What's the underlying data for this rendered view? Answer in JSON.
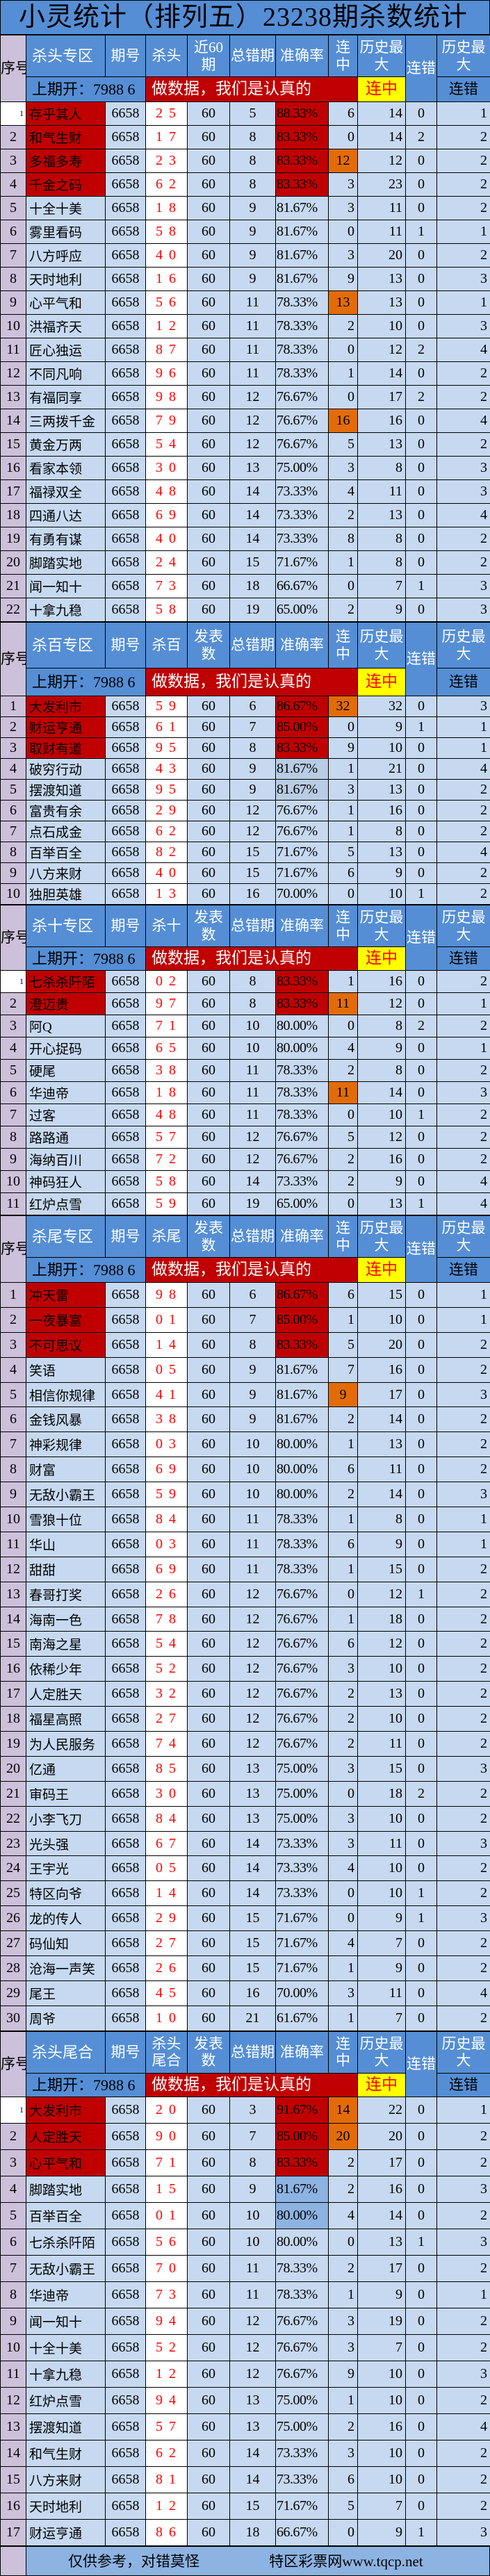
{
  "title": "小灵统计（排列五）23238期杀数统计",
  "header_common": {
    "seq": "序号",
    "period": "期号",
    "errors": "总错期",
    "accuracy": "准确率",
    "streak": "连中",
    "hist_max": "历史最大",
    "err_streak": "连错",
    "hist_max_err": "历史最大",
    "last_draw": "上期开：7988 6",
    "banner": "做数据，我们是认真的",
    "streak_badge": "连中",
    "err_streak_label": "连错"
  },
  "colors": {
    "header": "#558ed5",
    "row": "#c6d9f0",
    "seq": "#ccc0da",
    "top": "#c00000",
    "streak_hot": "#e36c09",
    "badge": "#ffff00",
    "footer": "#8db3e2"
  },
  "sections": [
    {
      "zone": "杀头专区",
      "kill_label": "杀头",
      "count_label": "近60期",
      "period": "6658",
      "top_highlight": 4,
      "orange_rows": [
        3,
        9,
        14
      ],
      "first_seq_plain": true,
      "acc_blue_rows": [],
      "acc_grey_rows": [],
      "rows": [
        [
          "1",
          "存乎其人",
          "2 5",
          "60",
          "5",
          "88.33%",
          "6",
          "14",
          "0",
          "1"
        ],
        [
          "2",
          "和气生财",
          "1 7",
          "60",
          "8",
          "83.33%",
          "0",
          "14",
          "2",
          "2"
        ],
        [
          "3",
          "多福多寿",
          "2 3",
          "60",
          "8",
          "83.33%",
          "12",
          "12",
          "0",
          "2"
        ],
        [
          "4",
          "千金之码",
          "6 2",
          "60",
          "8",
          "83.33%",
          "3",
          "23",
          "0",
          "2"
        ],
        [
          "5",
          "十全十美",
          "1 8",
          "60",
          "9",
          "81.67%",
          "3",
          "11",
          "0",
          "2"
        ],
        [
          "6",
          "雾里看码",
          "5 8",
          "60",
          "9",
          "81.67%",
          "0",
          "11",
          "1",
          "1"
        ],
        [
          "7",
          "八方呼应",
          "4 0",
          "60",
          "9",
          "81.67%",
          "3",
          "20",
          "0",
          "2"
        ],
        [
          "8",
          "天时地利",
          "1 6",
          "60",
          "9",
          "81.67%",
          "9",
          "13",
          "0",
          "3"
        ],
        [
          "9",
          "心平气和",
          "5 6",
          "60",
          "11",
          "78.33%",
          "13",
          "13",
          "0",
          "1"
        ],
        [
          "10",
          "洪福齐天",
          "1 2",
          "60",
          "11",
          "78.33%",
          "2",
          "10",
          "0",
          "3"
        ],
        [
          "11",
          "匠心独运",
          "8 7",
          "60",
          "11",
          "78.33%",
          "0",
          "12",
          "2",
          "4"
        ],
        [
          "12",
          "不同凡响",
          "9 6",
          "60",
          "11",
          "78.33%",
          "1",
          "14",
          "0",
          "2"
        ],
        [
          "13",
          "有福同享",
          "9 8",
          "60",
          "12",
          "76.67%",
          "0",
          "17",
          "2",
          "2"
        ],
        [
          "14",
          "三两拨千金",
          "7 9",
          "60",
          "12",
          "76.67%",
          "16",
          "16",
          "0",
          "4"
        ],
        [
          "15",
          "黄金万两",
          "5 4",
          "60",
          "12",
          "76.67%",
          "5",
          "13",
          "0",
          "2"
        ],
        [
          "16",
          "看家本领",
          "3 0",
          "60",
          "13",
          "75.00%",
          "3",
          "8",
          "0",
          "3"
        ],
        [
          "17",
          "福禄双全",
          "4 8",
          "60",
          "14",
          "73.33%",
          "4",
          "11",
          "0",
          "3"
        ],
        [
          "18",
          "四通八达",
          "6 9",
          "60",
          "14",
          "73.33%",
          "2",
          "13",
          "0",
          "4"
        ],
        [
          "19",
          "有勇有谋",
          "4 0",
          "60",
          "14",
          "73.33%",
          "8",
          "8",
          "0",
          "2"
        ],
        [
          "20",
          "脚踏实地",
          "2 4",
          "60",
          "15",
          "71.67%",
          "1",
          "8",
          "0",
          "2"
        ],
        [
          "21",
          "闻一知十",
          "7 3",
          "60",
          "18",
          "66.67%",
          "0",
          "7",
          "1",
          "3"
        ],
        [
          "22",
          "十拿九稳",
          "5 8",
          "60",
          "19",
          "65.00%",
          "2",
          "9",
          "0",
          "3"
        ]
      ]
    },
    {
      "zone": "杀百专区",
      "kill_label": "杀百",
      "count_label": "发表数",
      "period": "6658",
      "top_highlight": 3,
      "orange_rows": [
        1
      ],
      "first_seq_plain": false,
      "acc_blue_rows": [],
      "acc_grey_rows": [
        4,
        5
      ],
      "rows": [
        [
          "1",
          "大发利市",
          "5 9",
          "60",
          "6",
          "86.67%",
          "32",
          "32",
          "0",
          "3"
        ],
        [
          "2",
          "财运亨通",
          "6 1",
          "60",
          "7",
          "85.00%",
          "0",
          "9",
          "1",
          "1"
        ],
        [
          "3",
          "取财有道",
          "9 5",
          "60",
          "8",
          "83.33%",
          "9",
          "10",
          "0",
          "1"
        ],
        [
          "4",
          "破穷行动",
          "4 3",
          "60",
          "9",
          "81.67%",
          "1",
          "21",
          "0",
          "4"
        ],
        [
          "5",
          "摆渡知道",
          "9 5",
          "60",
          "9",
          "81.67%",
          "3",
          "13",
          "0",
          "2"
        ],
        [
          "6",
          "富贵有余",
          "2 9",
          "60",
          "12",
          "76.67%",
          "1",
          "16",
          "0",
          "2"
        ],
        [
          "7",
          "点石成金",
          "6 2",
          "60",
          "12",
          "76.67%",
          "1",
          "8",
          "0",
          "2"
        ],
        [
          "8",
          "百举百全",
          "8 2",
          "60",
          "15",
          "71.67%",
          "5",
          "13",
          "0",
          "4"
        ],
        [
          "9",
          "八方来财",
          "4 0",
          "60",
          "15",
          "71.67%",
          "6",
          "9",
          "0",
          "2"
        ],
        [
          "10",
          "独胆英雄",
          "1 3",
          "60",
          "16",
          "70.00%",
          "0",
          "10",
          "1",
          "2"
        ]
      ]
    },
    {
      "zone": "杀十专区",
      "kill_label": "杀十",
      "count_label": "发表数",
      "period": "6658",
      "top_highlight": 2,
      "orange_rows": [
        2,
        6
      ],
      "first_seq_plain": true,
      "acc_blue_rows": [],
      "acc_grey_rows": [],
      "rows": [
        [
          "1",
          "七杀杀阡陌",
          "0 2",
          "60",
          "8",
          "83.33%",
          "1",
          "16",
          "0",
          "2"
        ],
        [
          "2",
          "澄迈贵",
          "9 7",
          "60",
          "8",
          "83.33%",
          "11",
          "12",
          "0",
          "1"
        ],
        [
          "3",
          "阿Q",
          "7 1",
          "60",
          "10",
          "80.00%",
          "0",
          "8",
          "2",
          "2"
        ],
        [
          "4",
          "开心捉码",
          "6 5",
          "60",
          "10",
          "80.00%",
          "4",
          "9",
          "0",
          "1"
        ],
        [
          "5",
          "硬尾",
          "3 8",
          "60",
          "11",
          "78.33%",
          "2",
          "8",
          "0",
          "2"
        ],
        [
          "6",
          "华迪帝",
          "1 8",
          "60",
          "11",
          "78.33%",
          "11",
          "14",
          "0",
          "3"
        ],
        [
          "7",
          "过客",
          "4 8",
          "60",
          "11",
          "78.33%",
          "0",
          "10",
          "1",
          "2"
        ],
        [
          "8",
          "路路通",
          "5 7",
          "60",
          "12",
          "76.67%",
          "5",
          "12",
          "0",
          "2"
        ],
        [
          "9",
          "海纳百川",
          "7 2",
          "60",
          "12",
          "76.67%",
          "2",
          "16",
          "0",
          "2"
        ],
        [
          "10",
          "神码狂人",
          "5 8",
          "60",
          "14",
          "73.33%",
          "2",
          "9",
          "0",
          "4"
        ],
        [
          "11",
          "红炉点雪",
          "5 9",
          "60",
          "19",
          "65.00%",
          "0",
          "13",
          "1",
          "4"
        ]
      ]
    },
    {
      "zone": "杀尾专区",
      "kill_label": "杀尾",
      "count_label": "发表数",
      "period": "6658",
      "top_highlight": 3,
      "orange_rows": [
        5
      ],
      "first_seq_plain": false,
      "acc_blue_rows": [],
      "acc_grey_rows": [],
      "rows": [
        [
          "1",
          "冲天雷",
          "9 8",
          "60",
          "6",
          "86.67%",
          "6",
          "15",
          "0",
          "1"
        ],
        [
          "2",
          "一夜暴富",
          "0 1",
          "60",
          "7",
          "85.00%",
          "1",
          "10",
          "0",
          "1"
        ],
        [
          "3",
          "不可思议",
          "1 4",
          "60",
          "8",
          "83.33%",
          "5",
          "20",
          "0",
          "2"
        ],
        [
          "4",
          "笑语",
          "0 5",
          "60",
          "9",
          "81.67%",
          "7",
          "16",
          "0",
          "2"
        ],
        [
          "5",
          "相信你规律",
          "4 1",
          "60",
          "9",
          "81.67%",
          "9",
          "17",
          "0",
          "3"
        ],
        [
          "6",
          "金钱风暴",
          "3 8",
          "60",
          "9",
          "81.67%",
          "2",
          "14",
          "0",
          "2"
        ],
        [
          "7",
          "神彩规律",
          "0 3",
          "60",
          "10",
          "80.00%",
          "1",
          "13",
          "0",
          "2"
        ],
        [
          "8",
          "财富",
          "6 9",
          "60",
          "10",
          "80.00%",
          "6",
          "11",
          "0",
          "2"
        ],
        [
          "9",
          "无敌小霸王",
          "5 9",
          "60",
          "10",
          "80.00%",
          "2",
          "14",
          "0",
          "3"
        ],
        [
          "10",
          "雪狼十位",
          "8 4",
          "60",
          "11",
          "78.33%",
          "1",
          "8",
          "0",
          "1"
        ],
        [
          "11",
          "华山",
          "0 3",
          "60",
          "11",
          "78.33%",
          "6",
          "9",
          "0",
          "1"
        ],
        [
          "12",
          "甜甜",
          "6 9",
          "60",
          "11",
          "78.33%",
          "1",
          "15",
          "0",
          "2"
        ],
        [
          "13",
          "春哥打奖",
          "2 6",
          "60",
          "12",
          "76.67%",
          "0",
          "12",
          "1",
          "2"
        ],
        [
          "14",
          "海南一色",
          "7 8",
          "60",
          "12",
          "76.67%",
          "1",
          "18",
          "0",
          "2"
        ],
        [
          "15",
          "南海之星",
          "5 4",
          "60",
          "12",
          "76.67%",
          "6",
          "12",
          "0",
          "2"
        ],
        [
          "16",
          "依稀少年",
          "5 2",
          "60",
          "12",
          "76.67%",
          "3",
          "10",
          "0",
          "2"
        ],
        [
          "17",
          "人定胜天",
          "3 2",
          "60",
          "12",
          "76.67%",
          "2",
          "13",
          "0",
          "2"
        ],
        [
          "18",
          "福星高照",
          "2 7",
          "60",
          "12",
          "76.67%",
          "2",
          "10",
          "0",
          "2"
        ],
        [
          "19",
          "为人民服务",
          "7 4",
          "60",
          "12",
          "76.67%",
          "2",
          "11",
          "0",
          "2"
        ],
        [
          "20",
          "亿通",
          "8 5",
          "60",
          "13",
          "75.00%",
          "3",
          "15",
          "0",
          "3"
        ],
        [
          "21",
          "审码王",
          "3 0",
          "60",
          "13",
          "75.00%",
          "0",
          "18",
          "2",
          "2"
        ],
        [
          "22",
          "小李飞刀",
          "8 4",
          "60",
          "13",
          "75.00%",
          "3",
          "10",
          "0",
          "2"
        ],
        [
          "23",
          "光头强",
          "6 7",
          "60",
          "14",
          "73.33%",
          "3",
          "11",
          "0",
          "3"
        ],
        [
          "24",
          "王宇光",
          "0 5",
          "60",
          "14",
          "73.33%",
          "4",
          "10",
          "0",
          "2"
        ],
        [
          "25",
          "特区向爷",
          "1 4",
          "60",
          "14",
          "73.33%",
          "0",
          "10",
          "1",
          "2"
        ],
        [
          "26",
          "龙的传人",
          "2 9",
          "60",
          "15",
          "71.67%",
          "0",
          "9",
          "1",
          "3"
        ],
        [
          "27",
          "码仙知",
          "2 7",
          "60",
          "15",
          "71.67%",
          "4",
          "7",
          "0",
          "2"
        ],
        [
          "28",
          "沧海一声笑",
          "2 6",
          "60",
          "15",
          "71.67%",
          "1",
          "9",
          "0",
          "2"
        ],
        [
          "29",
          "尾王",
          "4 5",
          "60",
          "16",
          "70.00%",
          "3",
          "11",
          "0",
          "4"
        ],
        [
          "30",
          "周爷",
          "1 0",
          "60",
          "21",
          "61.67%",
          "1",
          "7",
          "0",
          "2"
        ]
      ]
    },
    {
      "zone": "杀头尾合",
      "kill_label": "杀头尾合",
      "count_label": "发表数",
      "period": "6658",
      "top_highlight": 3,
      "orange_rows": [
        1,
        2
      ],
      "first_seq_plain": true,
      "acc_blue_rows": [
        4,
        5
      ],
      "acc_grey_rows": [],
      "rows": [
        [
          "1",
          "大发利市",
          "2 0",
          "60",
          "3",
          "91.67%",
          "14",
          "22",
          "0",
          "1"
        ],
        [
          "2",
          "人定胜天",
          "9 0",
          "60",
          "7",
          "85.00%",
          "20",
          "20",
          "0",
          "2"
        ],
        [
          "3",
          "心平气和",
          "7 1",
          "60",
          "8",
          "83.33%",
          "2",
          "17",
          "0",
          "2"
        ],
        [
          "4",
          "脚踏实地",
          "1 5",
          "60",
          "9",
          "81.67%",
          "2",
          "16",
          "0",
          "3"
        ],
        [
          "5",
          "百举百全",
          "0 1",
          "60",
          "10",
          "80.00%",
          "4",
          "14",
          "0",
          "2"
        ],
        [
          "6",
          "七杀杀阡陌",
          "5 6",
          "60",
          "10",
          "80.00%",
          "0",
          "13",
          "1",
          "3"
        ],
        [
          "7",
          "无敌小霸王",
          "7 0",
          "60",
          "11",
          "78.33%",
          "2",
          "17",
          "0",
          "2"
        ],
        [
          "8",
          "华迪帝",
          "7 3",
          "60",
          "11",
          "78.33%",
          "1",
          "9",
          "0",
          "1"
        ],
        [
          "9",
          "闻一知十",
          "9 4",
          "60",
          "12",
          "76.67%",
          "3",
          "19",
          "0",
          "2"
        ],
        [
          "10",
          "十全十美",
          "5 2",
          "60",
          "12",
          "76.67%",
          "3",
          "7",
          "0",
          "2"
        ],
        [
          "11",
          "十拿九稳",
          "1 2",
          "60",
          "12",
          "76.67%",
          "9",
          "10",
          "0",
          "3"
        ],
        [
          "12",
          "红炉点雪",
          "9 4",
          "60",
          "13",
          "75.00%",
          "1",
          "10",
          "0",
          "2"
        ],
        [
          "13",
          "摆渡知道",
          "5 7",
          "60",
          "13",
          "75.00%",
          "2",
          "16",
          "0",
          "4"
        ],
        [
          "14",
          "和气生财",
          "6 2",
          "60",
          "14",
          "73.33%",
          "3",
          "10",
          "0",
          "2"
        ],
        [
          "15",
          "八方来财",
          "8 1",
          "60",
          "14",
          "73.33%",
          "6",
          "10",
          "0",
          "2"
        ],
        [
          "16",
          "天时地利",
          "1 2",
          "60",
          "15",
          "71.67%",
          "5",
          "7",
          "0",
          "2"
        ],
        [
          "17",
          "财运亨通",
          "8 6",
          "60",
          "18",
          "66.67%",
          "0",
          "9",
          "1",
          "3"
        ]
      ]
    }
  ],
  "footer": {
    "disclaimer": "仅供参考，对错莫怪",
    "site": "特区彩票网www.tqcp.net"
  }
}
